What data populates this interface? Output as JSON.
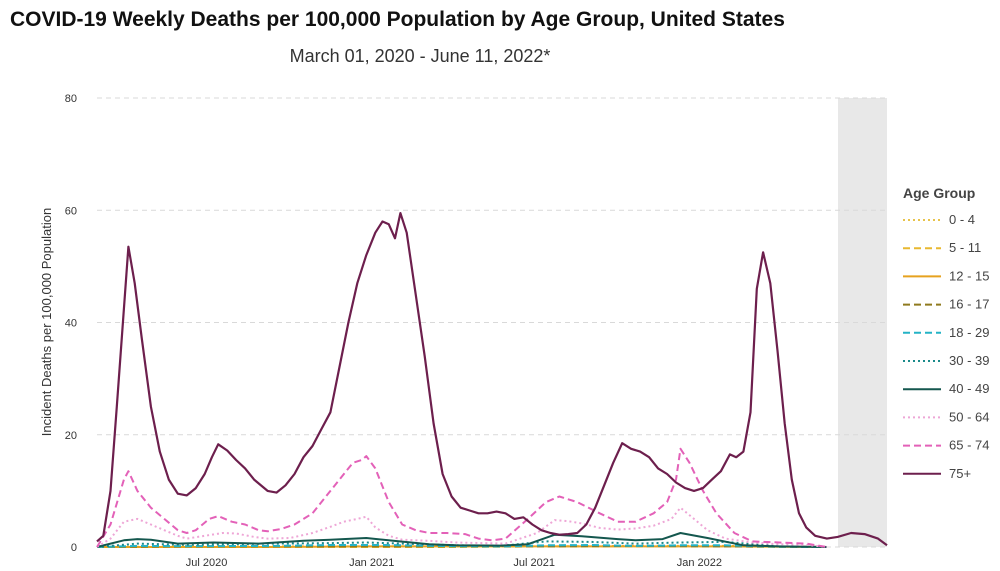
{
  "chart_data": {
    "type": "line",
    "title": "COVID-19 Weekly Deaths per 100,000 Population by Age Group, United States",
    "subtitle": "March 01, 2020 - June 11, 2022*",
    "xlabel": "",
    "ylabel": "Incident Deaths per 100,000 Population",
    "x_tick_labels": [
      "Jul 2020",
      "Jan 2021",
      "Jul 2021",
      "Jan 2022"
    ],
    "y_ticks": [
      0,
      20,
      40,
      60,
      80
    ],
    "ylim": [
      0,
      80
    ],
    "grid": "horizontal dashed",
    "legend": {
      "title": "Age Group",
      "placement": "right"
    },
    "shaded_region": "last ~6 weeks (data incomplete)",
    "series": [
      {
        "name": "0 - 4",
        "color": "#e8c34a",
        "dash": "dot",
        "values": [
          [
            0,
            0
          ],
          [
            100,
            0.1
          ],
          [
            200,
            0.1
          ],
          [
            300,
            0.1
          ],
          [
            400,
            0.1
          ],
          [
            500,
            0.1
          ],
          [
            600,
            0.2
          ],
          [
            700,
            0.2
          ],
          [
            813,
            0
          ]
        ]
      },
      {
        "name": "5 - 11",
        "color": "#e8b830",
        "dash": "dash",
        "values": [
          [
            0,
            0
          ],
          [
            100,
            0.0
          ],
          [
            200,
            0.0
          ],
          [
            300,
            0.0
          ],
          [
            400,
            0.0
          ],
          [
            500,
            0.1
          ],
          [
            600,
            0.1
          ],
          [
            700,
            0.1
          ],
          [
            813,
            0
          ]
        ]
      },
      {
        "name": "12 - 15",
        "color": "#e6a21f",
        "dash": "solid",
        "values": [
          [
            0,
            0
          ],
          [
            100,
            0.0
          ],
          [
            200,
            0.0
          ],
          [
            300,
            0.1
          ],
          [
            400,
            0.1
          ],
          [
            500,
            0.1
          ],
          [
            600,
            0.1
          ],
          [
            700,
            0.1
          ],
          [
            813,
            0
          ]
        ]
      },
      {
        "name": "16 - 17",
        "color": "#8f7a1e",
        "dash": "dash",
        "values": [
          [
            0,
            0
          ],
          [
            100,
            0.1
          ],
          [
            200,
            0.1
          ],
          [
            300,
            0.1
          ],
          [
            400,
            0.1
          ],
          [
            500,
            0.1
          ],
          [
            600,
            0.2
          ],
          [
            700,
            0.1
          ],
          [
            813,
            0
          ]
        ]
      },
      {
        "name": "18 - 29",
        "color": "#24b3c6",
        "dash": "dash",
        "values": [
          [
            0,
            0
          ],
          [
            45,
            0.2
          ],
          [
            100,
            0.15
          ],
          [
            200,
            0.2
          ],
          [
            260,
            0.35
          ],
          [
            320,
            0.35
          ],
          [
            400,
            0.15
          ],
          [
            450,
            0.1
          ],
          [
            500,
            0.3
          ],
          [
            550,
            0.35
          ],
          [
            600,
            0.2
          ],
          [
            650,
            0.3
          ],
          [
            700,
            0.3
          ],
          [
            760,
            0.05
          ],
          [
            813,
            0
          ]
        ]
      },
      {
        "name": "30 - 39",
        "color": "#1a8a8a",
        "dash": "dot",
        "values": [
          [
            0,
            0
          ],
          [
            45,
            0.6
          ],
          [
            100,
            0.4
          ],
          [
            200,
            0.6
          ],
          [
            260,
            0.7
          ],
          [
            300,
            0.8
          ],
          [
            400,
            0.3
          ],
          [
            450,
            0.2
          ],
          [
            500,
            1.0
          ],
          [
            550,
            0.9
          ],
          [
            600,
            0.6
          ],
          [
            650,
            0.8
          ],
          [
            700,
            0.9
          ],
          [
            760,
            0.1
          ],
          [
            813,
            0
          ]
        ]
      },
      {
        "name": "40 - 49",
        "color": "#14574e",
        "dash": "solid",
        "values": [
          [
            0,
            0
          ],
          [
            30,
            1.2
          ],
          [
            45,
            1.4
          ],
          [
            60,
            1.3
          ],
          [
            90,
            0.6
          ],
          [
            130,
            0.8
          ],
          [
            180,
            0.6
          ],
          [
            230,
            1.1
          ],
          [
            260,
            1.3
          ],
          [
            300,
            1.6
          ],
          [
            330,
            1.1
          ],
          [
            370,
            0.5
          ],
          [
            400,
            0.3
          ],
          [
            450,
            0.25
          ],
          [
            480,
            0.5
          ],
          [
            510,
            2.2
          ],
          [
            540,
            1.9
          ],
          [
            580,
            1.4
          ],
          [
            600,
            1.2
          ],
          [
            630,
            1.4
          ],
          [
            650,
            2.5
          ],
          [
            680,
            1.6
          ],
          [
            720,
            0.3
          ],
          [
            760,
            0.1
          ],
          [
            813,
            0
          ]
        ]
      },
      {
        "name": "50 - 64",
        "color": "#eea6d6",
        "dash": "dot",
        "values": [
          [
            0,
            0
          ],
          [
            15,
            1.5
          ],
          [
            30,
            4.5
          ],
          [
            45,
            5
          ],
          [
            60,
            4
          ],
          [
            75,
            3
          ],
          [
            90,
            2
          ],
          [
            100,
            1.5
          ],
          [
            120,
            2
          ],
          [
            140,
            2.5
          ],
          [
            155,
            2.4
          ],
          [
            175,
            1.8
          ],
          [
            190,
            1.5
          ],
          [
            215,
            1.6
          ],
          [
            240,
            2.5
          ],
          [
            260,
            3.6
          ],
          [
            275,
            4.5
          ],
          [
            290,
            5.0
          ],
          [
            300,
            5.4
          ],
          [
            310,
            3.5
          ],
          [
            325,
            2.0
          ],
          [
            340,
            1.3
          ],
          [
            370,
            1.1
          ],
          [
            400,
            0.8
          ],
          [
            430,
            0.7
          ],
          [
            455,
            0.6
          ],
          [
            490,
            2.5
          ],
          [
            510,
            4.8
          ],
          [
            525,
            4.6
          ],
          [
            540,
            4.2
          ],
          [
            560,
            3.4
          ],
          [
            580,
            3.1
          ],
          [
            600,
            3.3
          ],
          [
            620,
            3.8
          ],
          [
            640,
            5
          ],
          [
            650,
            7
          ],
          [
            665,
            5
          ],
          [
            680,
            3
          ],
          [
            700,
            1.5
          ],
          [
            730,
            0.8
          ],
          [
            760,
            0.5
          ],
          [
            790,
            0.4
          ],
          [
            813,
            0
          ]
        ]
      },
      {
        "name": "65 - 74",
        "color": "#e361b8",
        "dash": "dash",
        "values": [
          [
            0,
            0
          ],
          [
            15,
            4
          ],
          [
            30,
            12
          ],
          [
            35,
            13.5
          ],
          [
            45,
            10
          ],
          [
            60,
            7
          ],
          [
            75,
            5
          ],
          [
            90,
            3
          ],
          [
            100,
            2.5
          ],
          [
            110,
            3
          ],
          [
            125,
            5
          ],
          [
            135,
            5.5
          ],
          [
            150,
            4.5
          ],
          [
            165,
            4
          ],
          [
            180,
            3
          ],
          [
            190,
            2.8
          ],
          [
            205,
            3.2
          ],
          [
            220,
            4
          ],
          [
            240,
            6
          ],
          [
            260,
            10
          ],
          [
            275,
            13
          ],
          [
            285,
            15
          ],
          [
            295,
            15.5
          ],
          [
            300,
            16.2
          ],
          [
            310,
            14
          ],
          [
            325,
            8
          ],
          [
            340,
            4
          ],
          [
            355,
            3
          ],
          [
            370,
            2.5
          ],
          [
            390,
            2.5
          ],
          [
            410,
            2.3
          ],
          [
            425,
            1.5
          ],
          [
            440,
            1.2
          ],
          [
            455,
            1.5
          ],
          [
            480,
            5
          ],
          [
            500,
            8
          ],
          [
            515,
            9
          ],
          [
            535,
            8
          ],
          [
            560,
            6
          ],
          [
            580,
            4.5
          ],
          [
            600,
            4.5
          ],
          [
            620,
            6
          ],
          [
            635,
            8
          ],
          [
            645,
            12
          ],
          [
            650,
            17.5
          ],
          [
            660,
            15
          ],
          [
            675,
            10
          ],
          [
            690,
            6
          ],
          [
            710,
            2.5
          ],
          [
            730,
            1
          ],
          [
            760,
            0.8
          ],
          [
            790,
            0.6
          ],
          [
            813,
            0
          ]
        ]
      },
      {
        "name": "75+",
        "color": "#6d1f4d",
        "dash": "solid",
        "values": [
          [
            0,
            1
          ],
          [
            7,
            2
          ],
          [
            15,
            10
          ],
          [
            22,
            25
          ],
          [
            28,
            38
          ],
          [
            35,
            53.5
          ],
          [
            42,
            47
          ],
          [
            50,
            37
          ],
          [
            60,
            25
          ],
          [
            70,
            17
          ],
          [
            80,
            12
          ],
          [
            90,
            9.5
          ],
          [
            100,
            9.2
          ],
          [
            110,
            10.5
          ],
          [
            120,
            13
          ],
          [
            128,
            16
          ],
          [
            135,
            18.3
          ],
          [
            145,
            17.2
          ],
          [
            155,
            15.5
          ],
          [
            165,
            14
          ],
          [
            175,
            12
          ],
          [
            190,
            10
          ],
          [
            200,
            9.7
          ],
          [
            210,
            11
          ],
          [
            220,
            13
          ],
          [
            230,
            16
          ],
          [
            240,
            18
          ],
          [
            250,
            21
          ],
          [
            260,
            24
          ],
          [
            270,
            32
          ],
          [
            280,
            40
          ],
          [
            290,
            47
          ],
          [
            300,
            52
          ],
          [
            310,
            56
          ],
          [
            318,
            58
          ],
          [
            325,
            57.5
          ],
          [
            332,
            55
          ],
          [
            338,
            59.5
          ],
          [
            345,
            56
          ],
          [
            355,
            45
          ],
          [
            365,
            34
          ],
          [
            375,
            22
          ],
          [
            385,
            13
          ],
          [
            395,
            9
          ],
          [
            405,
            7
          ],
          [
            415,
            6.5
          ],
          [
            425,
            6
          ],
          [
            435,
            6
          ],
          [
            445,
            6.3
          ],
          [
            455,
            6
          ],
          [
            465,
            5
          ],
          [
            475,
            5.3
          ],
          [
            485,
            4
          ],
          [
            495,
            3
          ],
          [
            505,
            2.5
          ],
          [
            515,
            2.2
          ],
          [
            525,
            2.3
          ],
          [
            535,
            2.5
          ],
          [
            545,
            4
          ],
          [
            555,
            7
          ],
          [
            565,
            11
          ],
          [
            575,
            15
          ],
          [
            585,
            18.5
          ],
          [
            595,
            17.5
          ],
          [
            605,
            17
          ],
          [
            615,
            16
          ],
          [
            625,
            14
          ],
          [
            635,
            13
          ],
          [
            645,
            11.5
          ],
          [
            655,
            10.5
          ],
          [
            665,
            10
          ],
          [
            675,
            10.5
          ],
          [
            685,
            12
          ],
          [
            695,
            13.5
          ],
          [
            705,
            16.5
          ],
          [
            712,
            16
          ],
          [
            720,
            17
          ],
          [
            728,
            24
          ],
          [
            735,
            46
          ],
          [
            742,
            52.5
          ],
          [
            750,
            47
          ],
          [
            758,
            35
          ],
          [
            766,
            22
          ],
          [
            774,
            12
          ],
          [
            782,
            6
          ],
          [
            790,
            3.5
          ],
          [
            800,
            2
          ],
          [
            813,
            1.5
          ],
          [
            825,
            1.8
          ],
          [
            840,
            2.5
          ],
          [
            855,
            2.3
          ],
          [
            870,
            1.5
          ],
          [
            880,
            0.3
          ]
        ]
      }
    ]
  }
}
